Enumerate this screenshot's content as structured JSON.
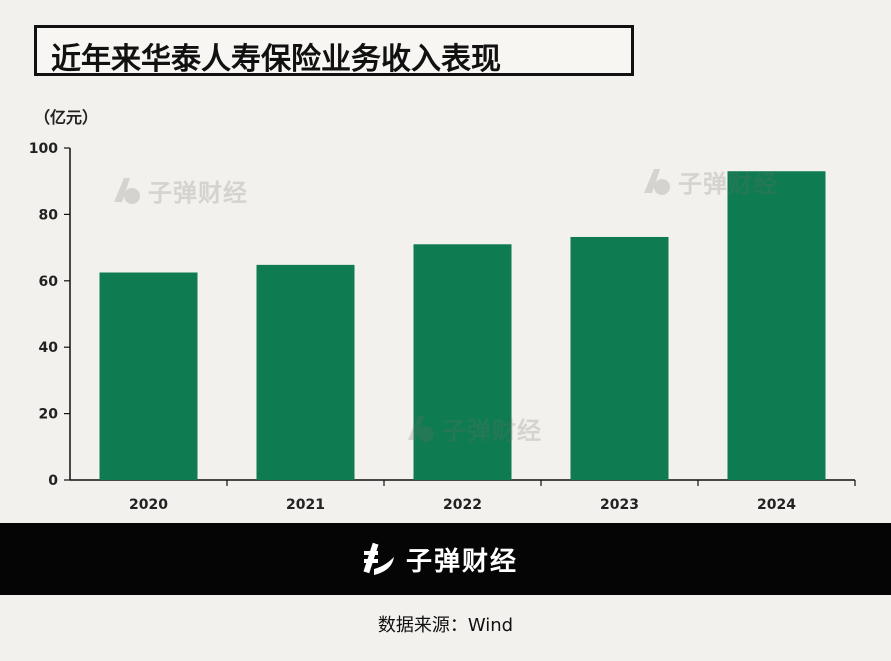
{
  "title": "近年来华泰人寿保险业务收入表现",
  "unit_label": "（亿元）",
  "brand": {
    "name": "子弹财经",
    "bar_color": "#0e7b50"
  },
  "footer": {
    "brand": "子弹财经",
    "source": "数据来源：Wind"
  },
  "chart_data": {
    "type": "bar",
    "categories": [
      "2020",
      "2021",
      "2022",
      "2023",
      "2024"
    ],
    "values": [
      62.5,
      64.8,
      71.0,
      73.2,
      93.0
    ],
    "ylim": [
      0,
      100
    ],
    "yticks": [
      "0",
      "20",
      "40",
      "60",
      "80",
      "100"
    ],
    "ylabel": "（亿元）",
    "title": "近年来华泰人寿保险业务收入表现",
    "grid": false
  }
}
